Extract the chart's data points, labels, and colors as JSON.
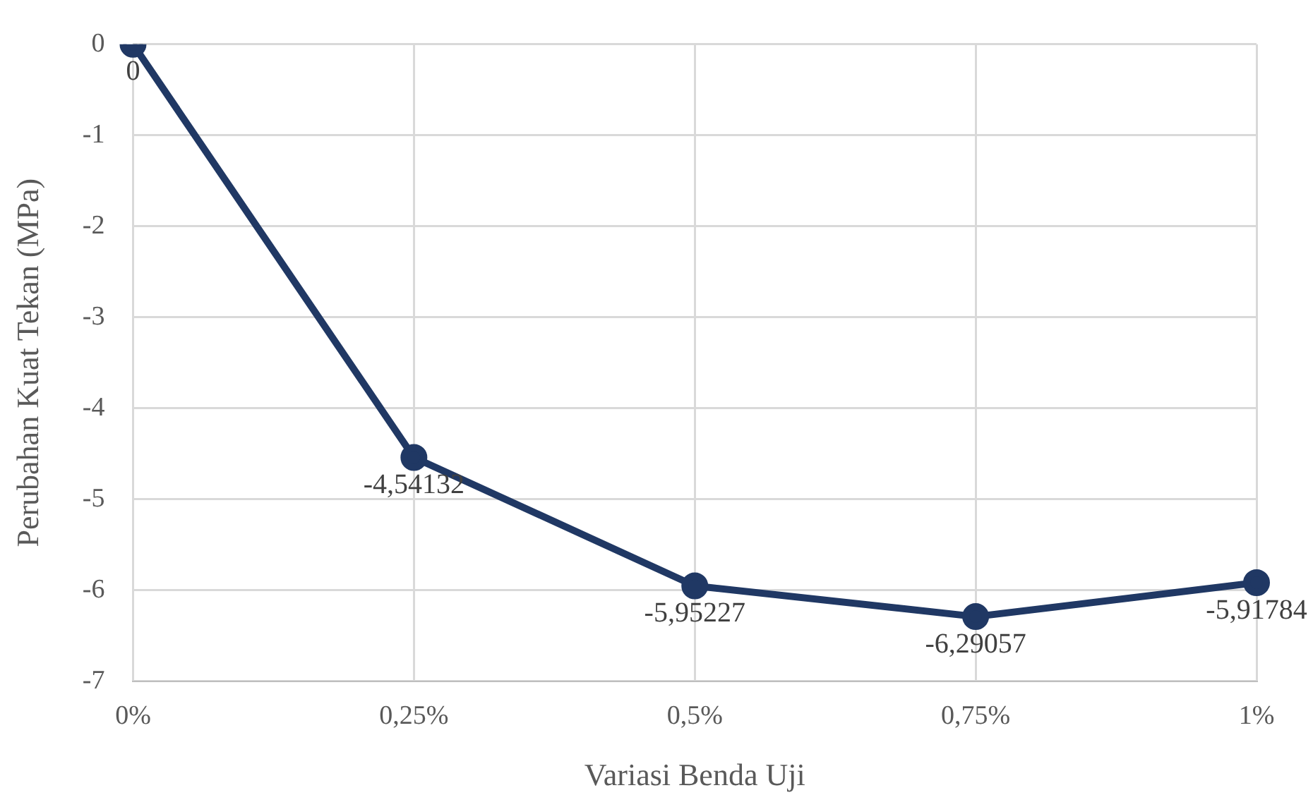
{
  "chart_data": {
    "type": "line",
    "xlabel": "Variasi Benda Uji",
    "ylabel": "Perubahan Kuat Tekan (MPa)",
    "categories": [
      "0%",
      "0,25%",
      "0,5%",
      "0,75%",
      "1%"
    ],
    "series": [
      {
        "color": "#203864",
        "values": [
          0,
          -4.54132,
          -5.95227,
          -6.29057,
          -5.91784
        ],
        "value_labels": [
          "0",
          "-4,54132",
          "-5,95227",
          "-6,29057",
          "-5,91784"
        ]
      }
    ],
    "ylim": [
      -7,
      0
    ],
    "yticks": [
      -7,
      -6,
      -5,
      -4,
      -3,
      -2,
      -1,
      0
    ],
    "grid": true,
    "legend": false,
    "marker": "circle",
    "line_style": "solid"
  }
}
